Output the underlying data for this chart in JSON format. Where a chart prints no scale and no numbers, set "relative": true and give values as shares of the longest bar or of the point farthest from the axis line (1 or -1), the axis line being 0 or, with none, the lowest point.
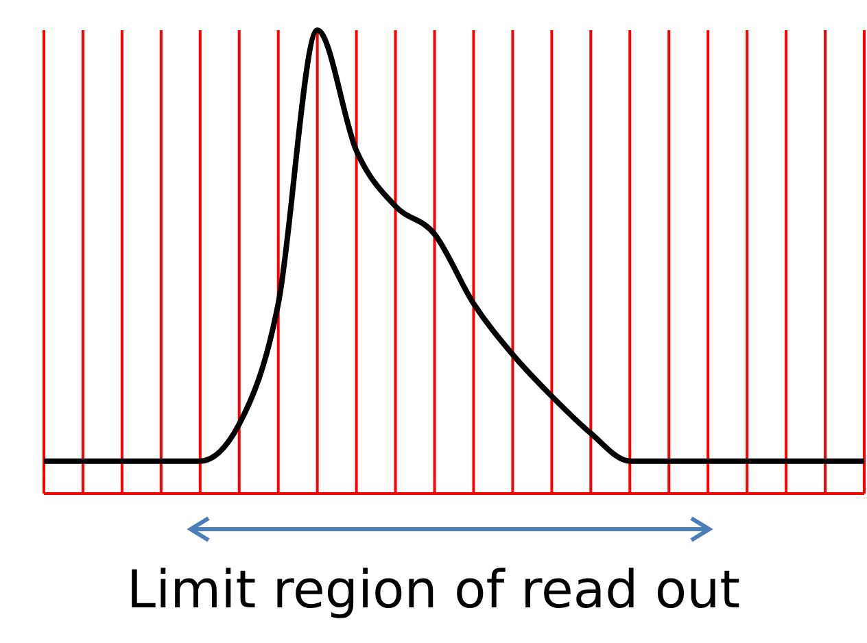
{
  "chart_data": {
    "type": "line",
    "relative": true,
    "categories": [
      null,
      null,
      null,
      null,
      null,
      null,
      null,
      null,
      null,
      null,
      null,
      null,
      null,
      null,
      null,
      null,
      null,
      null,
      null,
      null,
      null,
      null
    ],
    "series": [
      {
        "color": "#000000",
        "values": [
          0.07,
          0.07,
          0.07,
          0.07,
          0.07,
          0.15,
          0.41,
          1,
          0.74,
          0.62,
          0.56,
          0.41,
          0.3,
          0.21,
          0.13,
          0.07,
          0.07,
          0.07,
          0.07,
          0.07,
          0.07,
          0.07
        ]
      }
    ],
    "grid": "x",
    "marker": "none",
    "line_style": "solid",
    "annotations": [
      "Limit region of read out"
    ]
  }
}
